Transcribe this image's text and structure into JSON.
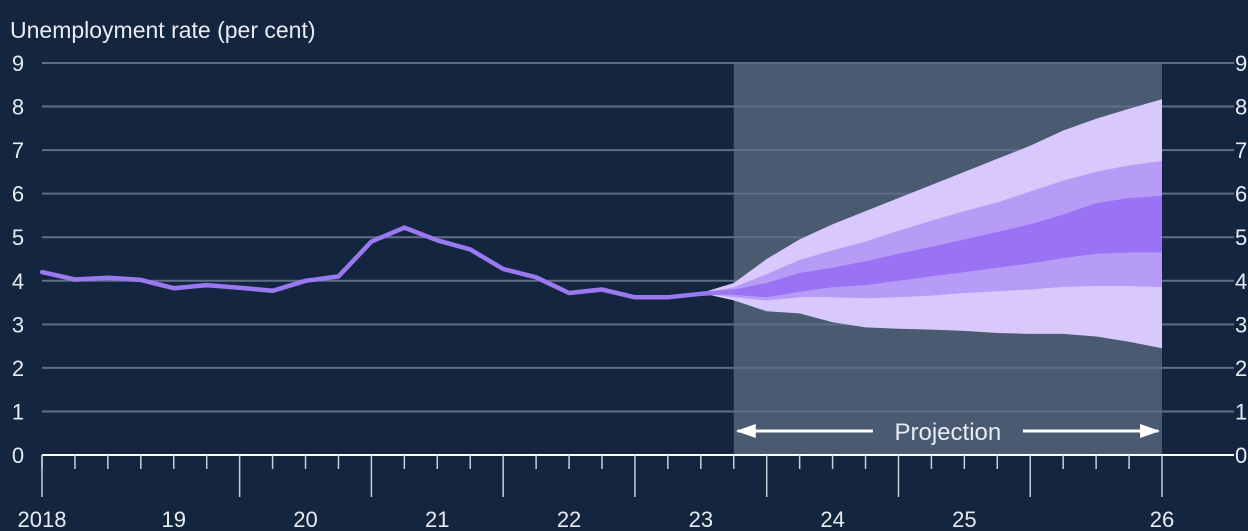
{
  "colors": {
    "background": "#14253f",
    "grid": "#5e6e88",
    "axis": "#ffffff",
    "text": "#e8ecf2",
    "projection_shade": "#4a5a70",
    "line": "#9a79f0",
    "fan_outer": "#d8c8fc",
    "fan_middle": "#b69cf7",
    "fan_inner": "#9a72f4"
  },
  "chart_data": {
    "type": "area",
    "title": "Unemployment rate (per cent)",
    "ylim": [
      0,
      9
    ],
    "y_ticks": [
      "0",
      "1",
      "2",
      "3",
      "4",
      "5",
      "6",
      "7",
      "8",
      "9"
    ],
    "xlim": [
      2017.5,
      2026.0
    ],
    "x_tick_labels": [
      {
        "label": "2018",
        "x": 2018.0
      },
      {
        "label": "19",
        "x": 2019.0
      },
      {
        "label": "20",
        "x": 2020.0
      },
      {
        "label": "21",
        "x": 2021.0
      },
      {
        "label": "22",
        "x": 2022.0
      },
      {
        "label": "23",
        "x": 2023.0
      },
      {
        "label": "24",
        "x": 2024.0
      },
      {
        "label": "25",
        "x": 2025.0
      },
      {
        "label": "26",
        "x": 2026.0
      }
    ],
    "grid": true,
    "projection": {
      "label": "Projection",
      "start": 2022.75,
      "end": 2026.0
    },
    "series": [
      {
        "type": "line",
        "x": [
          2017.5,
          2017.75,
          2018.0,
          2018.25,
          2018.5,
          2018.75,
          2019.0,
          2019.25,
          2019.5,
          2019.75,
          2020.0,
          2020.25,
          2020.5,
          2020.75,
          2021.0,
          2021.25,
          2021.5,
          2021.75,
          2022.0,
          2022.25,
          2022.5,
          2022.75
        ],
        "values": [
          4.2,
          4.03,
          4.07,
          4.02,
          3.83,
          3.9,
          3.84,
          3.77,
          4.0,
          4.1,
          4.9,
          5.22,
          4.93,
          4.72,
          4.27,
          4.08,
          3.72,
          3.8,
          3.62,
          3.62,
          3.7,
          3.75
        ]
      },
      {
        "type": "fan",
        "x": [
          2022.5,
          2022.75,
          2023.0,
          2023.25,
          2023.5,
          2023.75,
          2024.0,
          2024.25,
          2024.5,
          2024.75,
          2025.0,
          2025.25,
          2025.5,
          2025.75,
          2026.0
        ],
        "outer_upper": [
          3.72,
          3.95,
          4.5,
          4.95,
          5.3,
          5.6,
          5.9,
          6.2,
          6.5,
          6.8,
          7.1,
          7.45,
          7.72,
          7.95,
          8.17
        ],
        "middle_upper": [
          3.72,
          3.85,
          4.15,
          4.48,
          4.7,
          4.9,
          5.15,
          5.38,
          5.6,
          5.8,
          6.05,
          6.3,
          6.5,
          6.65,
          6.75
        ],
        "inner_upper": [
          3.72,
          3.8,
          3.95,
          4.18,
          4.3,
          4.45,
          4.62,
          4.78,
          4.95,
          5.12,
          5.3,
          5.52,
          5.78,
          5.9,
          5.95
        ],
        "inner_lower": [
          3.72,
          3.68,
          3.62,
          3.75,
          3.85,
          3.9,
          4.0,
          4.1,
          4.2,
          4.3,
          4.4,
          4.52,
          4.62,
          4.65,
          4.65
        ],
        "middle_lower": [
          3.72,
          3.62,
          3.55,
          3.62,
          3.62,
          3.6,
          3.62,
          3.66,
          3.72,
          3.76,
          3.8,
          3.86,
          3.88,
          3.88,
          3.85
        ],
        "outer_lower": [
          3.72,
          3.55,
          3.3,
          3.25,
          3.05,
          2.93,
          2.9,
          2.88,
          2.85,
          2.8,
          2.78,
          2.78,
          2.72,
          2.6,
          2.45
        ]
      }
    ]
  }
}
